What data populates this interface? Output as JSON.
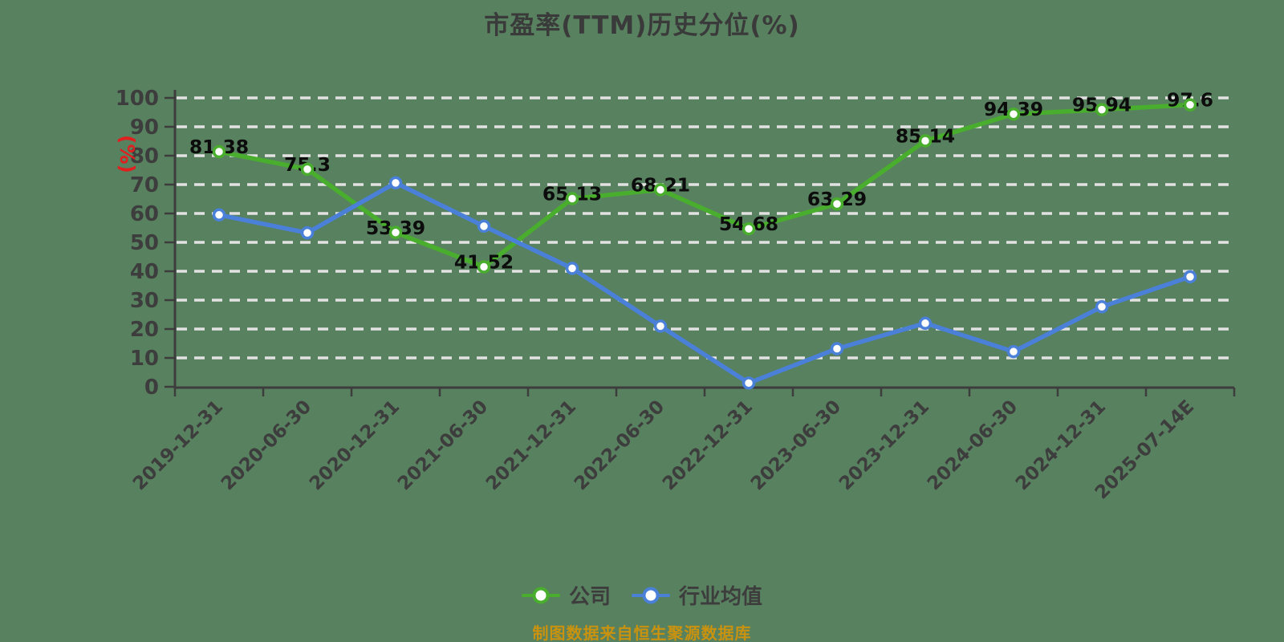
{
  "page": {
    "background": "#58815f"
  },
  "title": {
    "text": "市盈率(TTM)历史分位(%)",
    "color": "#3a3a3a"
  },
  "source_note": {
    "text": "制图数据来自恒生聚源数据库",
    "color": "#c9920f"
  },
  "legend": {
    "position": "bottom-center",
    "items": [
      {
        "label": "公司",
        "color": "#49ae2d"
      },
      {
        "label": "行业均值",
        "color": "#4a80d8"
      }
    ]
  },
  "chart_data": {
    "type": "line",
    "title": "市盈率(TTM)历史分位(%)",
    "xlabel": "",
    "ylabel": "(%)",
    "ylabel_color": "#e01f1f",
    "ylim": [
      0,
      100
    ],
    "ytick_interval": 10,
    "yticks": [
      0,
      10,
      20,
      30,
      40,
      50,
      60,
      70,
      80,
      90,
      100
    ],
    "grid": "horizontal-dashed",
    "grid_color": "#e2e2e2",
    "axis_color": "#3d3d3d",
    "data_label_color": "#0c0c0c",
    "marker_fill": "#ffffff",
    "x_label_rotation": 45,
    "legend_position": "bottom-center",
    "categories": [
      "2019-12-31",
      "2020-06-30",
      "2020-12-31",
      "2021-06-30",
      "2021-12-31",
      "2022-06-30",
      "2022-12-31",
      "2023-06-30",
      "2023-12-31",
      "2024-06-30",
      "2024-12-31",
      "2025-07-14E"
    ],
    "series": [
      {
        "name": "公司",
        "color": "#49ae2d",
        "marker": "circle-white-fill",
        "data_labels_shown": true,
        "values": [
          81.38,
          75.3,
          53.39,
          41.52,
          65.13,
          68.21,
          54.68,
          63.29,
          85.14,
          94.39,
          95.94,
          97.6
        ]
      },
      {
        "name": "行业均值",
        "color": "#4a80d8",
        "marker": "circle-white-fill",
        "data_labels_shown": false,
        "values_estimated_from_gridlines": true,
        "values": [
          59.5,
          53.3,
          70.6,
          55.6,
          41,
          21,
          1.3,
          13.2,
          22,
          12.2,
          27.7,
          38.1
        ]
      }
    ]
  }
}
